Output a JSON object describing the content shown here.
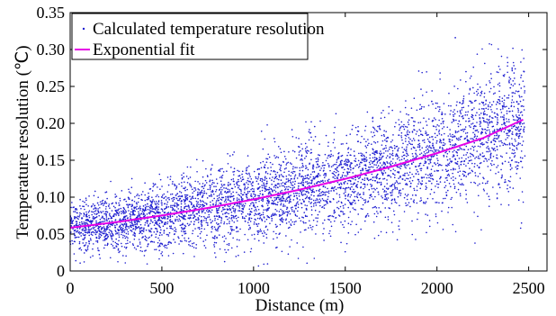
{
  "chart_data": {
    "type": "scatter",
    "title": "",
    "xlabel": "Distance (m)",
    "ylabel": "Temperature resolution (℃)",
    "xlim": [
      0,
      2600
    ],
    "ylim": [
      0,
      0.35
    ],
    "xticks": [
      0,
      500,
      1000,
      1500,
      2000,
      2500
    ],
    "yticks": [
      0,
      0.05,
      0.1,
      0.15,
      0.2,
      0.25,
      0.3,
      0.35
    ],
    "xtick_labels": [
      "0",
      "500",
      "1000",
      "1500",
      "2000",
      "2500"
    ],
    "ytick_labels": [
      "0",
      "0.05",
      "0.10",
      "0.15",
      "0.20",
      "0.25",
      "0.30",
      "0.35"
    ],
    "grid": false,
    "legend_position": "top-left",
    "series": [
      {
        "name": "Calculated temperature resolution",
        "kind": "scatter",
        "color": "#1f1fd0",
        "x_range": [
          0,
          2480
        ],
        "approx_points": 4800,
        "trend_fit": {
          "a": 0.0585,
          "b": 0.000504
        },
        "x": [
          0,
          25,
          50,
          75,
          100,
          150,
          200,
          250,
          300,
          350,
          400,
          450,
          500,
          550,
          600,
          650,
          700,
          750,
          800,
          850,
          900,
          950,
          1000,
          1050,
          1100,
          1150,
          1200,
          1250,
          1300,
          1350,
          1400,
          1450,
          1500,
          1550,
          1600,
          1650,
          1700,
          1750,
          1800,
          1850,
          1900,
          1950,
          2000,
          2050,
          2100,
          2150,
          2200,
          2250,
          2300,
          2350,
          2400,
          2450,
          2475
        ],
        "y": [
          0.04,
          0.071,
          0.03,
          0.078,
          0.06,
          0.092,
          0.049,
          0.081,
          0.074,
          0.052,
          0.088,
          0.066,
          0.092,
          0.058,
          0.098,
          0.071,
          0.104,
          0.062,
          0.082,
          0.112,
          0.074,
          0.118,
          0.088,
          0.103,
          0.071,
          0.123,
          0.097,
          0.129,
          0.106,
          0.144,
          0.094,
          0.138,
          0.121,
          0.156,
          0.104,
          0.148,
          0.133,
          0.168,
          0.127,
          0.188,
          0.142,
          0.165,
          0.176,
          0.143,
          0.316,
          0.149,
          0.193,
          0.171,
          0.225,
          0.176,
          0.248,
          0.183,
          0.27
        ],
        "value_note": "Points listed are a representative subset read from the plot; the remaining scatter is distributed around the exponential fit line."
      },
      {
        "name": "Exponential fit",
        "kind": "line",
        "color": "#e600e6",
        "x": [
          0,
          250,
          500,
          750,
          1000,
          1250,
          1500,
          1750,
          2000,
          2250,
          2470
        ],
        "y": [
          0.0585,
          0.0662,
          0.0752,
          0.0854,
          0.097,
          0.1101,
          0.1248,
          0.1413,
          0.1596,
          0.1799,
          0.205
        ]
      }
    ]
  }
}
